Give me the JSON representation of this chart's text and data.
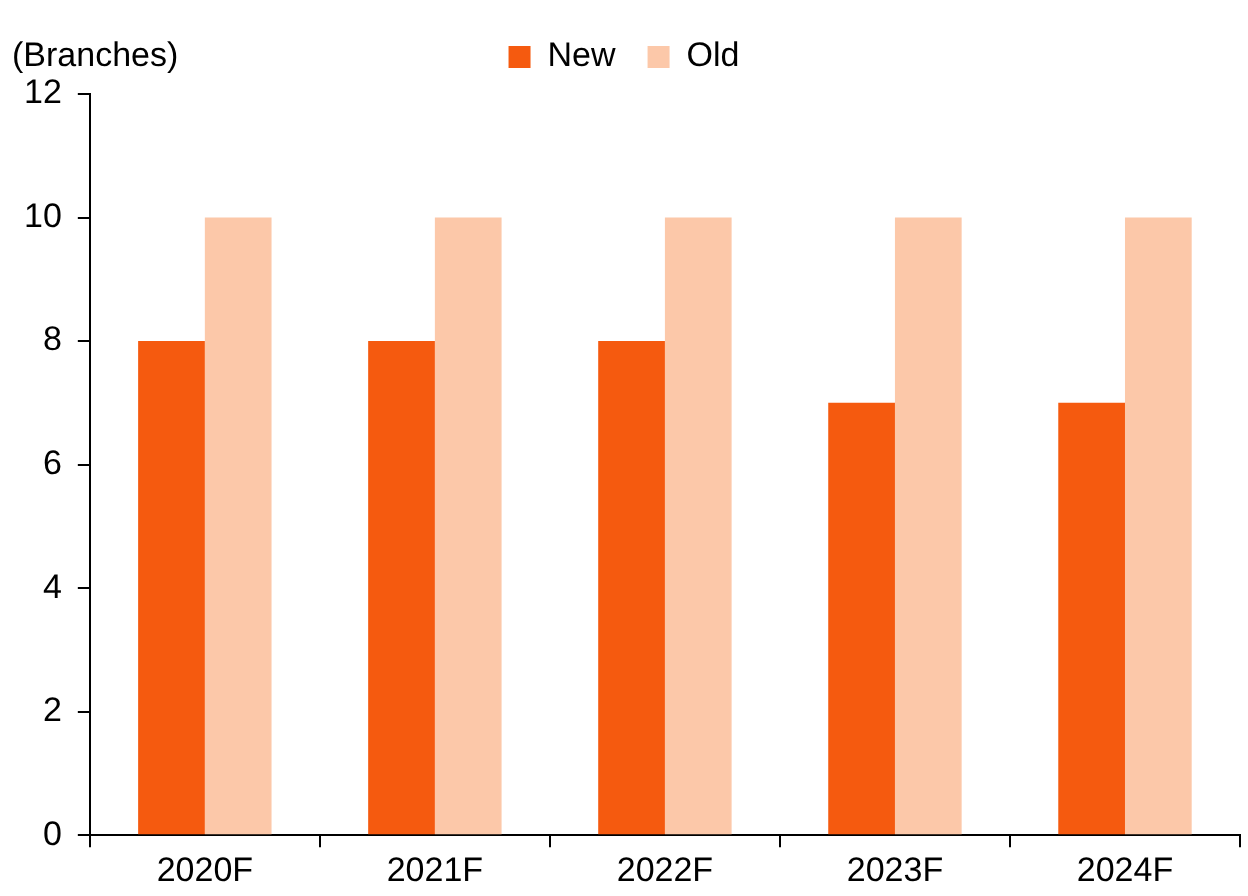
{
  "chart_data": {
    "type": "bar",
    "ylabel": "(Branches)",
    "categories": [
      "2020F",
      "2021F",
      "2022F",
      "2023F",
      "2024F"
    ],
    "series": [
      {
        "name": "New",
        "color": "#f55a0f",
        "values": [
          8,
          8,
          8,
          7,
          7
        ]
      },
      {
        "name": "Old",
        "color": "#fcc8a9",
        "values": [
          10,
          10,
          10,
          10,
          10
        ]
      }
    ],
    "ylim": [
      0,
      12
    ],
    "yticks": [
      0,
      2,
      4,
      6,
      8,
      10,
      12
    ],
    "grid": false,
    "legend": "top"
  }
}
